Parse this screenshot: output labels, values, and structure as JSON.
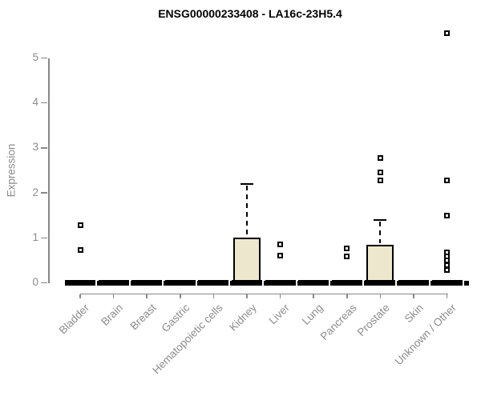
{
  "chart_data": {
    "type": "boxplot",
    "title": "ENSG00000233408 - LA16c-23H5.4",
    "ylabel": "Expression",
    "xlabel": "",
    "ylim": [
      0,
      5
    ],
    "yticks": [
      0,
      1,
      2,
      3,
      4,
      5
    ],
    "grid": false,
    "legend": "none",
    "marker_style": "open-square",
    "categories": [
      "Bladder",
      "Brain",
      "Breast",
      "Gastric",
      "Hematopoietic cells",
      "Kidney",
      "Liver",
      "Lung",
      "Pancreas",
      "Prostate",
      "Skin",
      "Unknown / Other"
    ],
    "boxes": [
      {
        "category": "Bladder",
        "q1": 0,
        "median": 0,
        "q3": 0,
        "whisker_low": 0,
        "whisker_high": 0,
        "outliers": [
          1.28,
          0.73
        ]
      },
      {
        "category": "Brain",
        "q1": 0,
        "median": 0,
        "q3": 0,
        "whisker_low": 0,
        "whisker_high": 0,
        "outliers": []
      },
      {
        "category": "Breast",
        "q1": 0,
        "median": 0,
        "q3": 0,
        "whisker_low": 0,
        "whisker_high": 0,
        "outliers": []
      },
      {
        "category": "Gastric",
        "q1": 0,
        "median": 0,
        "q3": 0,
        "whisker_low": 0,
        "whisker_high": 0,
        "outliers": []
      },
      {
        "category": "Hematopoietic cells",
        "q1": 0,
        "median": 0,
        "q3": 0,
        "whisker_low": 0,
        "whisker_high": 0,
        "outliers": []
      },
      {
        "category": "Kidney",
        "q1": 0,
        "median": 0,
        "q3": 1.0,
        "whisker_low": 0,
        "whisker_high": 2.2,
        "outliers": []
      },
      {
        "category": "Liver",
        "q1": 0,
        "median": 0,
        "q3": 0,
        "whisker_low": 0,
        "whisker_high": 0,
        "outliers": [
          0.86,
          0.6
        ]
      },
      {
        "category": "Lung",
        "q1": 0,
        "median": 0,
        "q3": 0,
        "whisker_low": 0,
        "whisker_high": 0,
        "outliers": []
      },
      {
        "category": "Pancreas",
        "q1": 0,
        "median": 0,
        "q3": 0,
        "whisker_low": 0,
        "whisker_high": 0,
        "outliers": [
          0.76,
          0.58
        ]
      },
      {
        "category": "Prostate",
        "q1": 0,
        "median": 0,
        "q3": 0.85,
        "whisker_low": 0,
        "whisker_high": 1.4,
        "outliers": [
          2.78,
          2.45,
          2.28
        ]
      },
      {
        "category": "Skin",
        "q1": 0,
        "median": 0,
        "q3": 0,
        "whisker_low": 0,
        "whisker_high": 0,
        "outliers": []
      },
      {
        "category": "Unknown / Other",
        "q1": 0,
        "median": 0,
        "q3": 0,
        "whisker_low": 0,
        "whisker_high": 0,
        "outliers": [
          5.56,
          2.28,
          1.5,
          0.67,
          0.58,
          0.49,
          0.4,
          0.28
        ]
      }
    ],
    "colors": {
      "box_fill": "#ede8cd",
      "box_border": "#000000",
      "zero_bar": "#000000",
      "outlier": "#000000",
      "axis": "#888888",
      "axis_text": "#8c8c8c",
      "title_text": "#000000",
      "background": "#ffffff"
    }
  }
}
